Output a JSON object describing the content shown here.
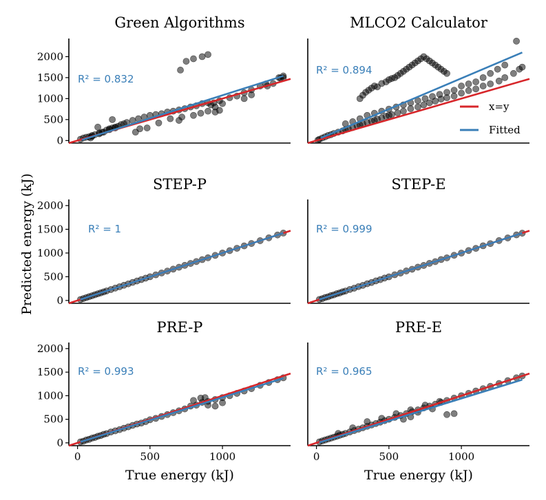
{
  "chart_data": {
    "type": "scatter",
    "xlabel": "True energy (kJ)",
    "ylabel": "Predicted energy (kJ)",
    "colors": {
      "identity": "#d7262a",
      "fitted": "#3a7fb8",
      "points": "#000000"
    },
    "legend": {
      "placement": "right of top-right panel",
      "entries": [
        "x=y",
        "Fitted"
      ]
    },
    "panels": [
      {
        "title": "Green Algorithms",
        "r2_label": "R² = 0.832",
        "xlim": [
          -60,
          1470
        ],
        "ylim": [
          -60,
          2400
        ],
        "xticks": [],
        "xtick_labels": [],
        "yticks": [
          0,
          500,
          1000,
          1500,
          2000
        ],
        "ytick_labels": [
          "0",
          "500",
          "1000",
          "1500",
          "2000"
        ],
        "fit": {
          "x": [
            30,
            1420
          ],
          "y": [
            15,
            1540
          ]
        },
        "points": {
          "x": [
            20,
            40,
            60,
            80,
            100,
            120,
            150,
            170,
            200,
            220,
            240,
            260,
            280,
            300,
            320,
            340,
            380,
            420,
            460,
            500,
            540,
            580,
            620,
            660,
            700,
            740,
            780,
            820,
            860,
            900,
            940,
            980,
            1050,
            1100,
            1150,
            1200,
            1260,
            1300,
            1350,
            1400,
            1420,
            400,
            430,
            480,
            560,
            640,
            720,
            800,
            850,
            900,
            950,
            980,
            240,
            700,
            710,
            750,
            800,
            860,
            900,
            920,
            950,
            1000,
            1150,
            1200,
            1310,
            1390,
            1420,
            100,
            150,
            180,
            220,
            260,
            140,
            90
          ],
          "y": [
            30,
            60,
            80,
            90,
            120,
            140,
            180,
            200,
            250,
            280,
            300,
            320,
            340,
            380,
            400,
            430,
            480,
            520,
            560,
            600,
            620,
            640,
            680,
            700,
            730,
            760,
            800,
            830,
            880,
            900,
            900,
            950,
            1020,
            1060,
            1140,
            1210,
            1300,
            1350,
            1360,
            1490,
            1500,
            200,
            280,
            300,
            420,
            520,
            560,
            600,
            650,
            700,
            680,
            720,
            500,
            480,
            1680,
            1890,
            1950,
            2000,
            2050,
            850,
            800,
            880,
            1000,
            1090,
            1300,
            1500,
            1540,
            100,
            160,
            200,
            260,
            300,
            320,
            60
          ]
        }
      },
      {
        "title": "MLCO2 Calculator",
        "r2_label": "R² = 0.894",
        "xlim": [
          -60,
          1470
        ],
        "ylim": [
          -60,
          2400
        ],
        "xticks": [],
        "xtick_labels": [],
        "yticks": [],
        "ytick_labels": [],
        "fit": {
          "x": [
            30,
            1420
          ],
          "y": [
            60,
            2100
          ]
        },
        "points": {
          "x": [
            10,
            20,
            40,
            60,
            80,
            100,
            120,
            150,
            180,
            200,
            220,
            250,
            280,
            300,
            320,
            350,
            380,
            400,
            420,
            450,
            480,
            500,
            520,
            560,
            600,
            650,
            700,
            740,
            780,
            820,
            860,
            900,
            950,
            1000,
            1050,
            1100,
            1150,
            1200,
            1260,
            1300,
            1360,
            1400,
            1420,
            200,
            250,
            300,
            350,
            400,
            450,
            500,
            550,
            600,
            650,
            700,
            750,
            800,
            850,
            900,
            950,
            1000,
            1050,
            1100,
            1150,
            1200,
            1250,
            1300,
            1380,
            300,
            320,
            340,
            360,
            380,
            400,
            420,
            450,
            480,
            500,
            520,
            540,
            560,
            580,
            600,
            620,
            640,
            660,
            680,
            700,
            720,
            740,
            760,
            780,
            800,
            820,
            840,
            860,
            880,
            900
          ],
          "y": [
            10,
            30,
            60,
            90,
            120,
            140,
            170,
            200,
            230,
            260,
            280,
            310,
            350,
            370,
            400,
            430,
            460,
            480,
            510,
            540,
            580,
            600,
            620,
            660,
            700,
            760,
            800,
            850,
            900,
            940,
            990,
            1020,
            1060,
            1130,
            1190,
            1230,
            1300,
            1350,
            1420,
            1500,
            1600,
            1700,
            1750,
            400,
            450,
            520,
            600,
            650,
            700,
            750,
            800,
            850,
            900,
            950,
            1000,
            1050,
            1100,
            1150,
            1200,
            1300,
            1350,
            1400,
            1500,
            1600,
            1700,
            1800,
            2370,
            1000,
            1080,
            1150,
            1200,
            1250,
            1300,
            1280,
            1360,
            1400,
            1450,
            1480,
            1500,
            1550,
            1600,
            1650,
            1700,
            1750,
            1800,
            1850,
            1900,
            1950,
            2000,
            1950,
            1900,
            1850,
            1800,
            1750,
            1700,
            1650,
            1600
          ]
        }
      },
      {
        "title": "STEP-P",
        "r2_label": "R² = 1",
        "xlim": [
          -60,
          1470
        ],
        "ylim": [
          -60,
          2100
        ],
        "xticks": [],
        "xtick_labels": [],
        "yticks": [
          0,
          500,
          1000,
          1500,
          2000
        ],
        "ytick_labels": [
          "0",
          "500",
          "1000",
          "1500",
          "2000"
        ],
        "fit": {
          "x": [
            20,
            1420
          ],
          "y": [
            20,
            1420
          ]
        },
        "points": {
          "x": [
            20,
            40,
            60,
            80,
            100,
            120,
            140,
            160,
            180,
            200,
            230,
            260,
            290,
            320,
            350,
            380,
            410,
            440,
            470,
            500,
            540,
            580,
            620,
            660,
            700,
            740,
            780,
            820,
            860,
            900,
            950,
            1000,
            1050,
            1100,
            1150,
            1200,
            1260,
            1320,
            1380,
            1420
          ],
          "y": [
            20,
            40,
            60,
            80,
            100,
            120,
            140,
            160,
            180,
            200,
            230,
            260,
            290,
            320,
            350,
            380,
            410,
            440,
            470,
            500,
            540,
            580,
            620,
            660,
            700,
            740,
            780,
            820,
            860,
            900,
            950,
            1000,
            1050,
            1100,
            1150,
            1200,
            1260,
            1320,
            1380,
            1420
          ]
        }
      },
      {
        "title": "STEP-E",
        "r2_label": "R² = 0.999",
        "xlim": [
          -60,
          1470
        ],
        "ylim": [
          -60,
          2100
        ],
        "xticks": [],
        "xtick_labels": [],
        "yticks": [],
        "ytick_labels": [],
        "fit": {
          "x": [
            20,
            1420
          ],
          "y": [
            20,
            1420
          ]
        },
        "points": {
          "x": [
            20,
            40,
            60,
            80,
            100,
            120,
            140,
            160,
            180,
            200,
            230,
            260,
            290,
            320,
            350,
            380,
            410,
            440,
            470,
            500,
            540,
            580,
            620,
            660,
            700,
            740,
            780,
            820,
            860,
            900,
            950,
            1000,
            1050,
            1100,
            1150,
            1200,
            1260,
            1320,
            1380,
            1420
          ],
          "y": [
            22,
            38,
            62,
            78,
            102,
            118,
            142,
            158,
            182,
            198,
            232,
            258,
            292,
            318,
            352,
            378,
            412,
            438,
            472,
            498,
            542,
            578,
            622,
            658,
            702,
            738,
            782,
            818,
            862,
            898,
            952,
            998,
            1052,
            1098,
            1152,
            1198,
            1262,
            1318,
            1382,
            1418
          ]
        }
      },
      {
        "title": "PRE-P",
        "r2_label": "R² = 0.993",
        "xlim": [
          -60,
          1470
        ],
        "ylim": [
          -60,
          2100
        ],
        "xticks": [
          0,
          500,
          1000
        ],
        "xtick_labels": [
          "0",
          "500",
          "1000"
        ],
        "yticks": [
          0,
          500,
          1000,
          1500,
          2000
        ],
        "ytick_labels": [
          "0",
          "500",
          "1000",
          "1500",
          "2000"
        ],
        "fit": {
          "x": [
            20,
            1420
          ],
          "y": [
            20,
            1370
          ]
        },
        "points": {
          "x": [
            20,
            40,
            60,
            80,
            100,
            120,
            140,
            160,
            180,
            200,
            230,
            260,
            290,
            320,
            350,
            380,
            410,
            440,
            470,
            500,
            540,
            580,
            620,
            660,
            700,
            740,
            780,
            820,
            860,
            900,
            950,
            1000,
            1050,
            1100,
            1150,
            1200,
            1260,
            1320,
            1380,
            1420,
            800,
            850,
            880,
            900,
            950,
            1000
          ],
          "y": [
            20,
            35,
            60,
            75,
            100,
            115,
            140,
            155,
            180,
            195,
            230,
            255,
            280,
            310,
            340,
            370,
            400,
            420,
            450,
            490,
            520,
            560,
            600,
            640,
            680,
            720,
            780,
            800,
            860,
            880,
            920,
            960,
            1000,
            1050,
            1100,
            1150,
            1220,
            1280,
            1340,
            1380,
            900,
            950,
            960,
            800,
            780,
            850
          ]
        }
      },
      {
        "title": "PRE-E",
        "r2_label": "R² = 0.965",
        "xlim": [
          -60,
          1470
        ],
        "ylim": [
          -60,
          2100
        ],
        "xticks": [
          0,
          500,
          1000
        ],
        "xtick_labels": [
          "0",
          "500",
          "1000"
        ],
        "yticks": [],
        "ytick_labels": [],
        "fit": {
          "x": [
            20,
            1420
          ],
          "y": [
            10,
            1340
          ]
        },
        "points": {
          "x": [
            20,
            40,
            60,
            80,
            100,
            120,
            140,
            160,
            180,
            200,
            230,
            260,
            290,
            320,
            350,
            380,
            410,
            440,
            470,
            500,
            540,
            580,
            620,
            660,
            700,
            740,
            780,
            820,
            860,
            900,
            950,
            1000,
            1050,
            1100,
            1150,
            1200,
            1260,
            1320,
            1380,
            1420,
            150,
            250,
            350,
            450,
            550,
            650,
            750,
            850,
            900,
            950,
            600,
            650,
            700,
            800
          ],
          "y": [
            20,
            40,
            60,
            80,
            100,
            120,
            140,
            160,
            180,
            200,
            230,
            260,
            290,
            320,
            350,
            380,
            410,
            440,
            470,
            500,
            540,
            580,
            620,
            660,
            700,
            740,
            780,
            820,
            860,
            900,
            950,
            1000,
            1050,
            1100,
            1150,
            1200,
            1260,
            1320,
            1380,
            1420,
            200,
            320,
            450,
            520,
            620,
            700,
            800,
            880,
            600,
            620,
            500,
            550,
            650,
            720
          ]
        }
      }
    ]
  }
}
